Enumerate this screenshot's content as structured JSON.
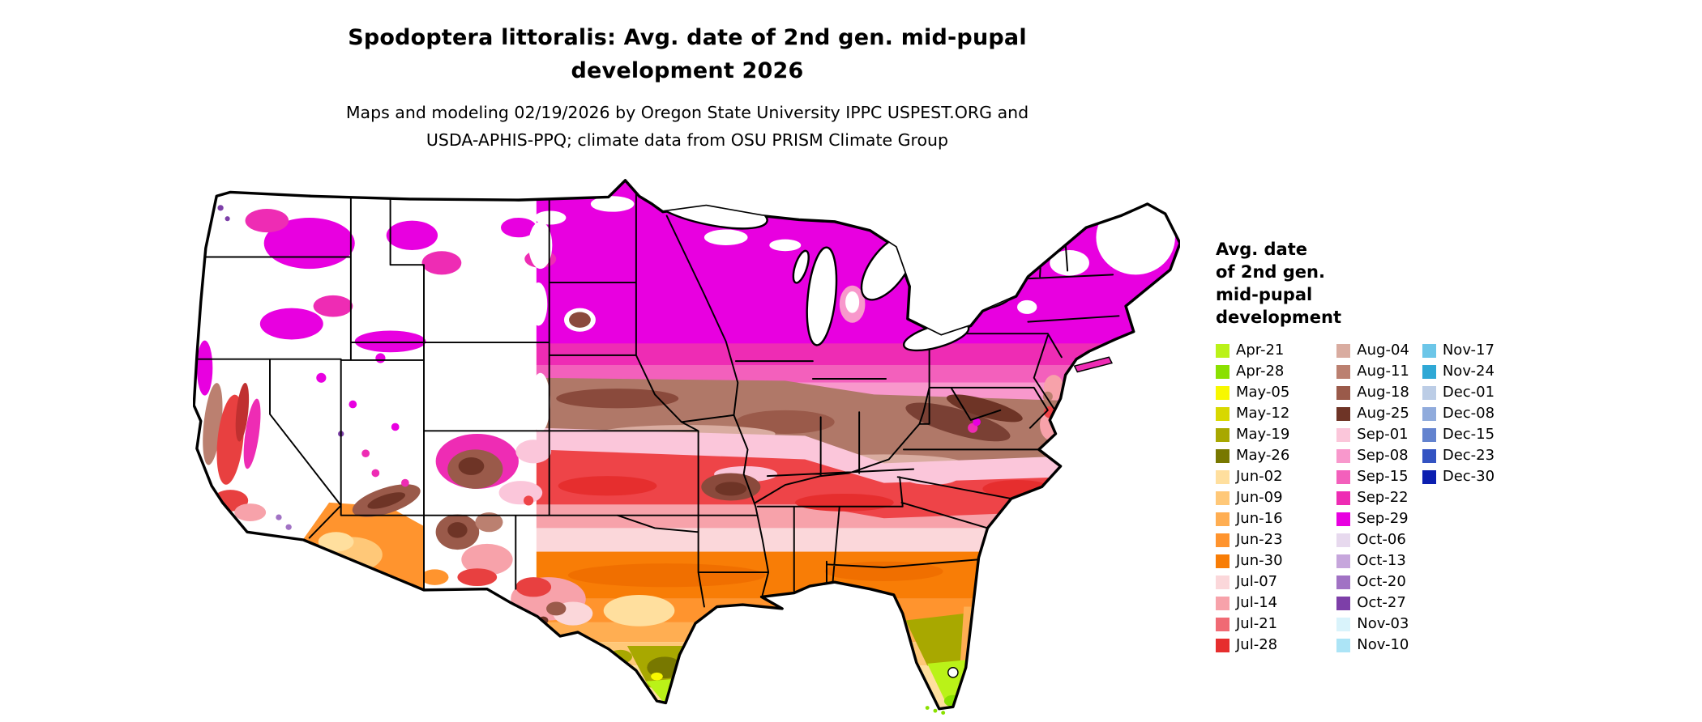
{
  "header": {
    "title": "Spodoptera littoralis: Avg. date of 2nd gen. mid-pupal\ndevelopment 2026",
    "subtitle": "Maps and modeling 02/19/2026 by Oregon State University IPPC USPEST.ORG and\nUSDA-APHIS-PPQ; climate data from OSU PRISM Climate Group"
  },
  "legend": {
    "title": "Avg. date\nof 2nd gen.\nmid-pupal\ndevelopment",
    "columns": [
      [
        {
          "label": "Apr-21",
          "color": "#baf218"
        },
        {
          "label": "Apr-28",
          "color": "#8ae000"
        },
        {
          "label": "May-05",
          "color": "#f8f800"
        },
        {
          "label": "May-12",
          "color": "#d8d800"
        },
        {
          "label": "May-19",
          "color": "#a8a800"
        },
        {
          "label": "May-26",
          "color": "#787800"
        },
        {
          "label": "Jun-02",
          "color": "#ffdf9e"
        },
        {
          "label": "Jun-09",
          "color": "#ffc878"
        },
        {
          "label": "Jun-16",
          "color": "#ffae52"
        },
        {
          "label": "Jun-23",
          "color": "#ff942e"
        },
        {
          "label": "Jun-30",
          "color": "#f87d06"
        },
        {
          "label": "Jul-07",
          "color": "#fbd7da"
        },
        {
          "label": "Jul-14",
          "color": "#f7a2aa"
        },
        {
          "label": "Jul-21",
          "color": "#f06a74"
        },
        {
          "label": "Jul-28",
          "color": "#e62e2e"
        }
      ],
      [
        {
          "label": "Aug-04",
          "color": "#d9aca0"
        },
        {
          "label": "Aug-11",
          "color": "#bb8070"
        },
        {
          "label": "Aug-18",
          "color": "#9a5a4a"
        },
        {
          "label": "Aug-25",
          "color": "#6e3426"
        },
        {
          "label": "Sep-01",
          "color": "#fbc6da"
        },
        {
          "label": "Sep-08",
          "color": "#f898cc"
        },
        {
          "label": "Sep-15",
          "color": "#f360bc"
        },
        {
          "label": "Sep-22",
          "color": "#ee2cb4"
        },
        {
          "label": "Sep-29",
          "color": "#e800e0"
        },
        {
          "label": "Oct-06",
          "color": "#e7d9ee"
        },
        {
          "label": "Oct-13",
          "color": "#c6a6dc"
        },
        {
          "label": "Oct-20",
          "color": "#a172c4"
        },
        {
          "label": "Oct-27",
          "color": "#7d3fa8"
        },
        {
          "label": "Nov-03",
          "color": "#d9f3fb"
        },
        {
          "label": "Nov-10",
          "color": "#ace4f6"
        }
      ],
      [
        {
          "label": "Nov-17",
          "color": "#6cc6e8"
        },
        {
          "label": "Nov-24",
          "color": "#2fa8d5"
        },
        {
          "label": "Dec-01",
          "color": "#bccde6"
        },
        {
          "label": "Dec-08",
          "color": "#90abdc"
        },
        {
          "label": "Dec-15",
          "color": "#6383cf"
        },
        {
          "label": "Dec-23",
          "color": "#3353c2"
        },
        {
          "label": "Dec-30",
          "color": "#0c1fb0"
        }
      ]
    ]
  }
}
